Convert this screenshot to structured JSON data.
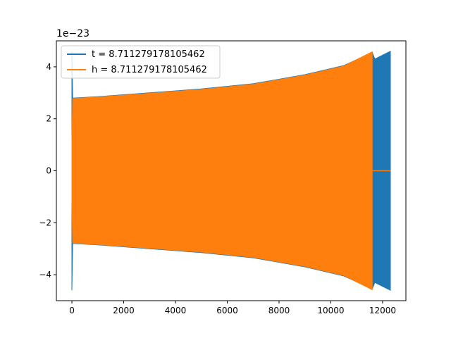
{
  "chart_data": {
    "type": "line",
    "title": "",
    "xlabel": "",
    "ylabel": "",
    "y_scale_label": "1e−23",
    "xlim": [
      -600,
      12900
    ],
    "ylim": [
      -5.0,
      5.0
    ],
    "x_ticks": [
      0,
      2000,
      4000,
      6000,
      8000,
      10000,
      12000
    ],
    "x_tick_labels": [
      "0",
      "2000",
      "4000",
      "6000",
      "8000",
      "10000",
      "12000"
    ],
    "y_ticks": [
      -4,
      -2,
      0,
      2,
      4
    ],
    "y_tick_labels": [
      "−4",
      "−2",
      "0",
      "2",
      "4"
    ],
    "grid": false,
    "legend_position": "top-left",
    "series": [
      {
        "name": "t = 8.711279178105462",
        "color": "#1f77b4",
        "envelope": {
          "x": [
            0,
            30,
            1000,
            3000,
            5000,
            7000,
            9000,
            10500,
            11600,
            11700,
            12000,
            12300
          ],
          "amplitude": [
            4.6,
            2.8,
            2.85,
            3.0,
            3.15,
            3.35,
            3.7,
            4.05,
            4.55,
            4.3,
            4.45,
            4.6
          ]
        }
      },
      {
        "name": "h = 8.711279178105462",
        "color": "#ff7f0e",
        "envelope": {
          "x": [
            0,
            30,
            1000,
            3000,
            5000,
            7000,
            9000,
            10500,
            11600
          ],
          "amplitude": [
            1.2,
            2.78,
            2.84,
            2.98,
            3.13,
            3.33,
            3.68,
            4.03,
            4.58
          ]
        },
        "flat_tail": {
          "x": [
            11600,
            12300
          ],
          "y": 0
        }
      }
    ]
  }
}
